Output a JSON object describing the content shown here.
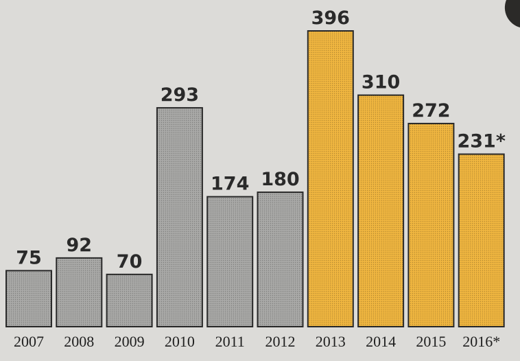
{
  "chart_data": {
    "type": "bar",
    "categories": [
      "2007",
      "2008",
      "2009",
      "2010",
      "2011",
      "2012",
      "2013",
      "2014",
      "2015",
      "2016*"
    ],
    "values": [
      75,
      92,
      70,
      293,
      174,
      180,
      396,
      310,
      272,
      231
    ],
    "value_labels": [
      "75",
      "92",
      "70",
      "293",
      "174",
      "180",
      "396",
      "310",
      "272",
      "231*"
    ],
    "colors": [
      "#a9a9a7",
      "#a9a9a7",
      "#a9a9a7",
      "#a9a9a7",
      "#a9a9a7",
      "#a9a9a7",
      "#f0b640",
      "#f0b640",
      "#f0b640",
      "#f0b640"
    ]
  }
}
